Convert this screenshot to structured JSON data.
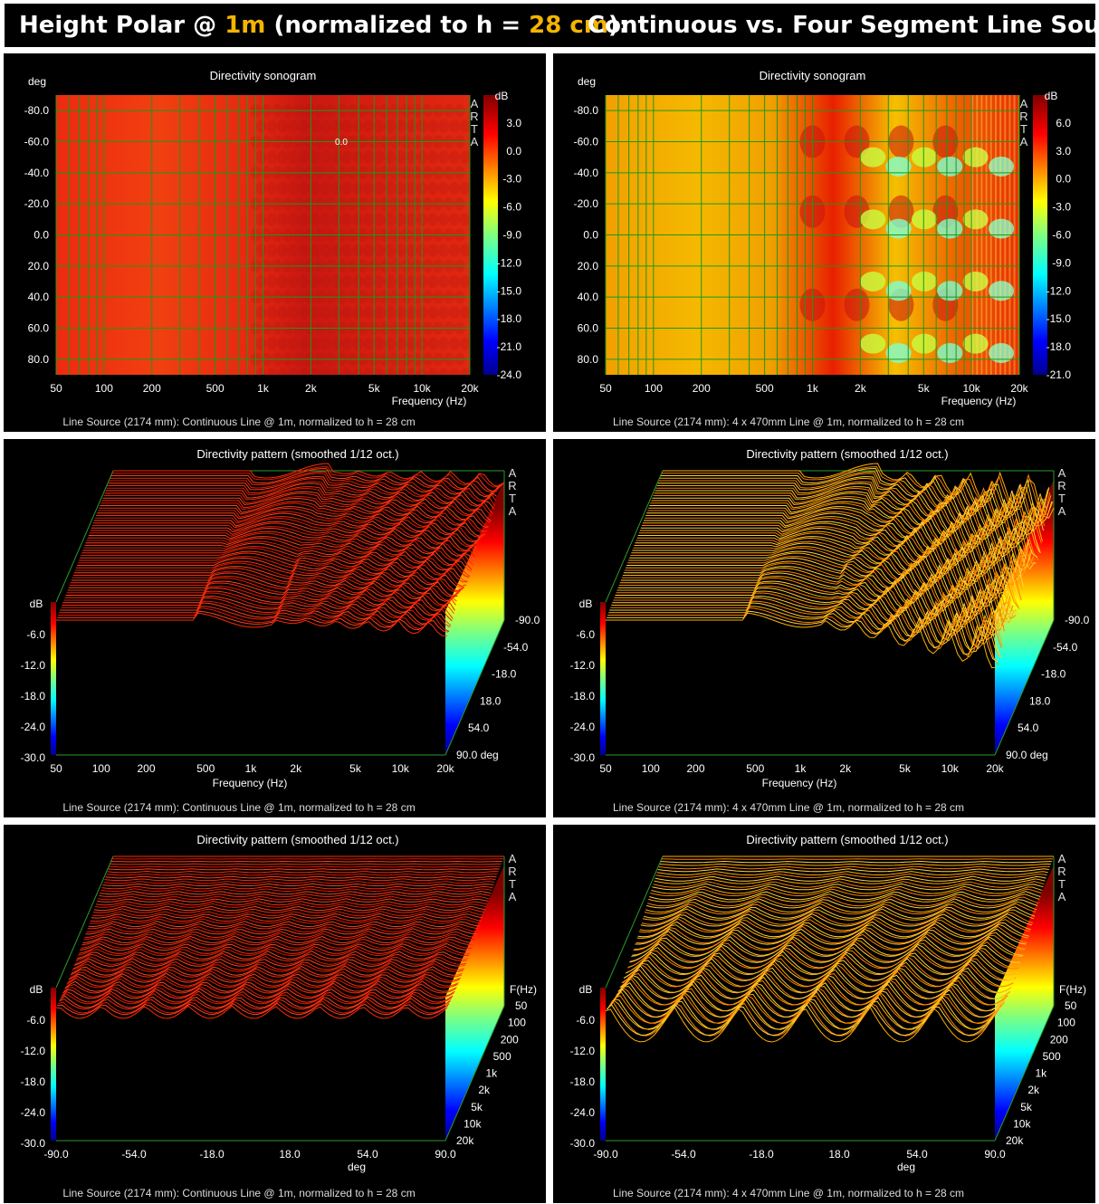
{
  "banner": {
    "part1": "Height Polar @ ",
    "hl1": "1m",
    "part2": " (normalized to h = ",
    "hl2": "28 cm",
    "part3": "):",
    "right": "Continuous vs. Four Segment Line Source"
  },
  "colors": {
    "highlight": "#f4b400",
    "grid": "#00a000",
    "background": "#000000"
  },
  "chart_data": [
    {
      "type": "heatmap",
      "title": "Directivity sonogram",
      "ylabel": "deg",
      "xlabel": "Frequency (Hz)",
      "xscale": "log",
      "xlim": [
        50,
        20000
      ],
      "ylim": [
        -90,
        90
      ],
      "x_ticks": [
        "50",
        "100",
        "200",
        "500",
        "1k",
        "2k",
        "5k",
        "10k",
        "20k"
      ],
      "y_ticks": [
        "-80.0",
        "-60.0",
        "-40.0",
        "-20.0",
        "0.0",
        "20.0",
        "40.0",
        "60.0",
        "80.0"
      ],
      "colorbar_label": "dB",
      "colorbar_ticks": [
        "3.0",
        "0.0",
        "-3.0",
        "-6.0",
        "-9.0",
        "-12.0",
        "-15.0",
        "-18.0",
        "-21.0",
        "-24.0"
      ],
      "colorbar_range": [
        -24,
        6
      ],
      "watermark": "ARTA",
      "annotation": "0.0",
      "caption": "Line Source (2174 mm): Continuous Line @ 1m, normalized to h = 28 cm"
    },
    {
      "type": "heatmap",
      "title": "Directivity sonogram",
      "ylabel": "deg",
      "xlabel": "Frequency (Hz)",
      "xscale": "log",
      "xlim": [
        50,
        20000
      ],
      "ylim": [
        -90,
        90
      ],
      "x_ticks": [
        "50",
        "100",
        "200",
        "500",
        "1k",
        "2k",
        "5k",
        "10k",
        "20k"
      ],
      "y_ticks": [
        "-80.0",
        "-60.0",
        "-40.0",
        "-20.0",
        "0.0",
        "20.0",
        "40.0",
        "60.0",
        "80.0"
      ],
      "colorbar_label": "dB",
      "colorbar_ticks": [
        "6.0",
        "3.0",
        "0.0",
        "-3.0",
        "-6.0",
        "-9.0",
        "-12.0",
        "-15.0",
        "-18.0",
        "-21.0"
      ],
      "colorbar_range": [
        -21,
        9
      ],
      "watermark": "ARTA",
      "caption": "Line Source (2174 mm): 4 x 470mm Line @ 1m, normalized to h = 28 cm"
    },
    {
      "type": "surface3d",
      "title": "Directivity pattern (smoothed 1/12 oct.)",
      "xlabel": "Frequency (Hz)",
      "x_ticks": [
        "50",
        "100",
        "200",
        "500",
        "1k",
        "2k",
        "5k",
        "10k",
        "20k"
      ],
      "depth_ticks": [
        "-90.0",
        "-54.0",
        "-18.0",
        "18.0",
        "54.0",
        "90.0 deg"
      ],
      "z_label": "dB",
      "z_ticks": [
        "-6.0",
        "-12.0",
        "-18.0",
        "-24.0",
        "-30.0"
      ],
      "watermark": "ARTA",
      "caption": "Line Source (2174 mm): Continuous Line @ 1m, normalized to h = 28 cm"
    },
    {
      "type": "surface3d",
      "title": "Directivity pattern (smoothed 1/12 oct.)",
      "xlabel": "Frequency (Hz)",
      "x_ticks": [
        "50",
        "100",
        "200",
        "500",
        "1k",
        "2k",
        "5k",
        "10k",
        "20k"
      ],
      "depth_ticks": [
        "-90.0",
        "-54.0",
        "-18.0",
        "18.0",
        "54.0",
        "90.0 deg"
      ],
      "z_label": "dB",
      "z_ticks": [
        "-6.0",
        "-12.0",
        "-18.0",
        "-24.0",
        "-30.0"
      ],
      "watermark": "ARTA",
      "caption": "Line Source (2174 mm): 4 x 470mm Line @ 1m, normalized to h = 28 cm"
    },
    {
      "type": "surface3d",
      "title": "Directivity pattern (smoothed 1/12 oct.)",
      "xlabel": "deg",
      "x_ticks": [
        "-90.0",
        "-54.0",
        "-18.0",
        "18.0",
        "54.0",
        "90.0"
      ],
      "depth_label": "F(Hz)",
      "depth_ticks": [
        "50",
        "100",
        "200",
        "500",
        "1k",
        "2k",
        "5k",
        "10k",
        "20k"
      ],
      "z_label": "dB",
      "z_ticks": [
        "-6.0",
        "-12.0",
        "-18.0",
        "-24.0",
        "-30.0"
      ],
      "watermark": "ARTA",
      "caption": "Line Source (2174 mm): Continuous Line @ 1m, normalized to h = 28 cm"
    },
    {
      "type": "surface3d",
      "title": "Directivity pattern (smoothed 1/12 oct.)",
      "xlabel": "deg",
      "x_ticks": [
        "-90.0",
        "-54.0",
        "-18.0",
        "18.0",
        "54.0",
        "90.0"
      ],
      "depth_label": "F(Hz)",
      "depth_ticks": [
        "50",
        "100",
        "200",
        "500",
        "1k",
        "2k",
        "5k",
        "10k",
        "20k"
      ],
      "z_label": "dB",
      "z_ticks": [
        "-6.0",
        "-12.0",
        "-18.0",
        "-24.0",
        "-30.0"
      ],
      "watermark": "ARTA",
      "caption": "Line Source (2174 mm): 4 x 470mm Line @ 1m, normalized to h = 28 cm"
    }
  ]
}
